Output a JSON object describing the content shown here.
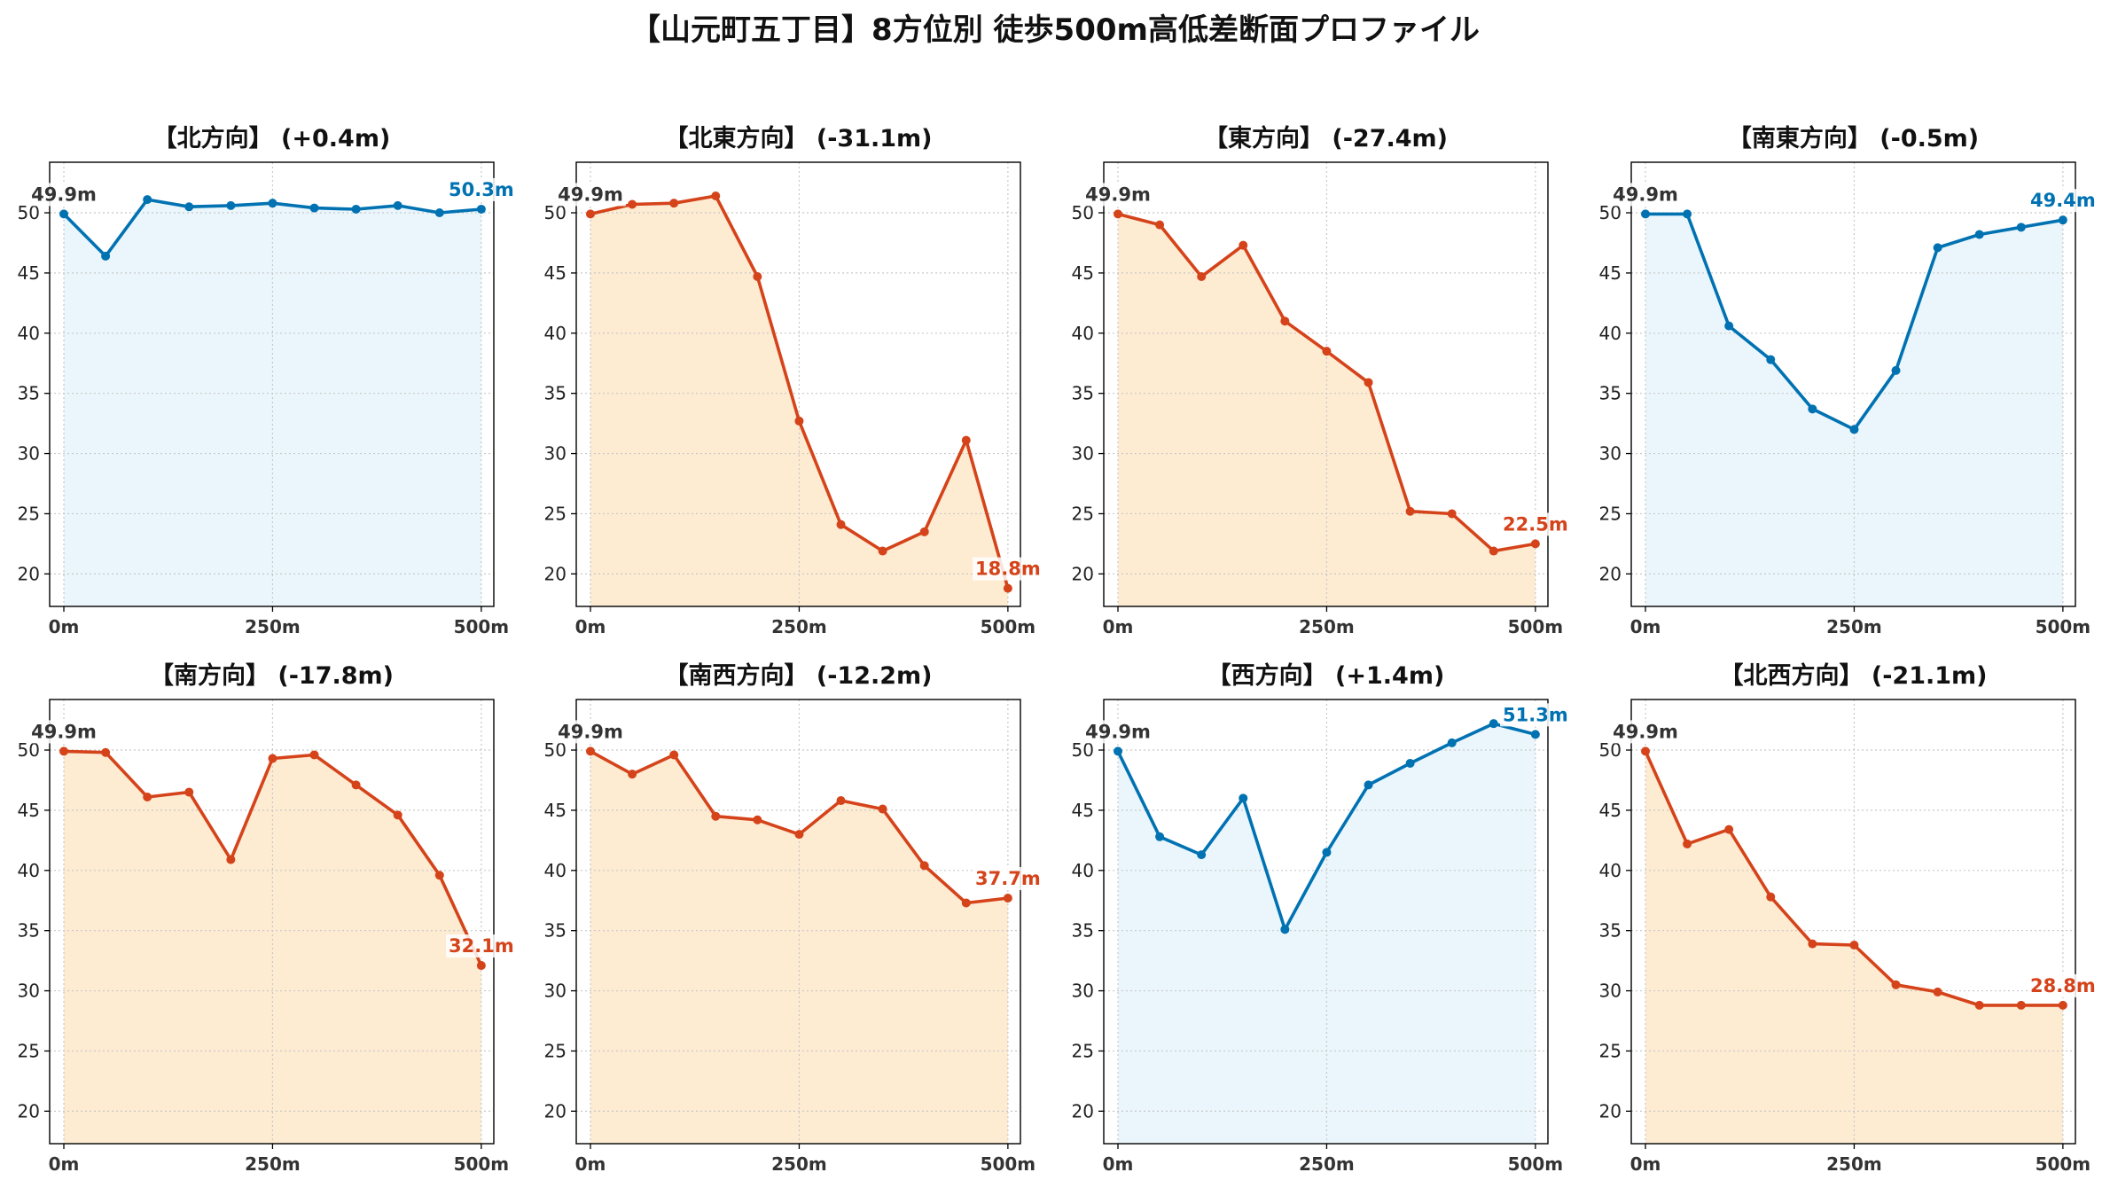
{
  "title": "【山元町五丁目】8方位別 徒歩500m高低差断面プロファイル",
  "colors": {
    "up": "#0072B2",
    "down": "#D5431A",
    "fill_up": "#EAF6FC",
    "fill_down": "#FDEBD2",
    "start_label": "#333333"
  },
  "chart_data": [
    {
      "type": "line",
      "title": "【北方向】 (+0.4m)",
      "x": [
        0,
        50,
        100,
        150,
        200,
        250,
        300,
        350,
        400,
        450,
        500
      ],
      "values": [
        49.9,
        46.4,
        51.1,
        50.5,
        50.6,
        50.8,
        50.4,
        50.3,
        50.6,
        50.0,
        50.3
      ],
      "xticks": [
        0,
        250,
        500
      ],
      "xtick_labels": [
        "0m",
        "250m",
        "500m"
      ],
      "yticks": [
        20,
        25,
        30,
        35,
        40,
        45,
        50
      ],
      "ytick_labels": [
        "20",
        "25",
        "30",
        "35",
        "40",
        "45",
        "50"
      ],
      "xlim": [
        -17,
        515
      ],
      "ylim": [
        17.3,
        54.2
      ],
      "grid": true,
      "color": "#0072B2",
      "fill": "#EAF6FC",
      "start_label": "49.9m",
      "end_label": "50.3m"
    },
    {
      "type": "line",
      "title": "【北東方向】 (-31.1m)",
      "x": [
        0,
        50,
        100,
        150,
        200,
        250,
        300,
        350,
        400,
        450,
        500
      ],
      "values": [
        49.9,
        50.7,
        50.8,
        51.4,
        44.7,
        32.7,
        24.1,
        21.9,
        23.5,
        31.1,
        18.8
      ],
      "xticks": [
        0,
        250,
        500
      ],
      "xtick_labels": [
        "0m",
        "250m",
        "500m"
      ],
      "yticks": [
        20,
        25,
        30,
        35,
        40,
        45,
        50
      ],
      "ytick_labels": [
        "20",
        "25",
        "30",
        "35",
        "40",
        "45",
        "50"
      ],
      "xlim": [
        -17,
        515
      ],
      "ylim": [
        17.3,
        54.2
      ],
      "grid": true,
      "color": "#D5431A",
      "fill": "#FDEBD2",
      "start_label": "49.9m",
      "end_label": "18.8m"
    },
    {
      "type": "line",
      "title": "【東方向】 (-27.4m)",
      "x": [
        0,
        50,
        100,
        150,
        200,
        250,
        300,
        350,
        400,
        450,
        500
      ],
      "values": [
        49.9,
        49.0,
        44.7,
        47.3,
        41.0,
        38.5,
        35.9,
        25.2,
        25.0,
        21.9,
        22.5
      ],
      "xticks": [
        0,
        250,
        500
      ],
      "xtick_labels": [
        "0m",
        "250m",
        "500m"
      ],
      "yticks": [
        20,
        25,
        30,
        35,
        40,
        45,
        50
      ],
      "ytick_labels": [
        "20",
        "25",
        "30",
        "35",
        "40",
        "45",
        "50"
      ],
      "xlim": [
        -17,
        515
      ],
      "ylim": [
        17.3,
        54.2
      ],
      "grid": true,
      "color": "#D5431A",
      "fill": "#FDEBD2",
      "start_label": "49.9m",
      "end_label": "22.5m"
    },
    {
      "type": "line",
      "title": "【南東方向】 (-0.5m)",
      "x": [
        0,
        50,
        100,
        150,
        200,
        250,
        300,
        350,
        400,
        450,
        500
      ],
      "values": [
        49.9,
        49.9,
        40.6,
        37.8,
        33.7,
        32.0,
        36.9,
        47.1,
        48.2,
        48.8,
        49.4
      ],
      "xticks": [
        0,
        250,
        500
      ],
      "xtick_labels": [
        "0m",
        "250m",
        "500m"
      ],
      "yticks": [
        20,
        25,
        30,
        35,
        40,
        45,
        50
      ],
      "ytick_labels": [
        "20",
        "25",
        "30",
        "35",
        "40",
        "45",
        "50"
      ],
      "xlim": [
        -17,
        515
      ],
      "ylim": [
        17.3,
        54.2
      ],
      "grid": true,
      "color": "#0072B2",
      "fill": "#EAF6FC",
      "start_label": "49.9m",
      "end_label": "49.4m"
    },
    {
      "type": "line",
      "title": "【南方向】 (-17.8m)",
      "x": [
        0,
        50,
        100,
        150,
        200,
        250,
        300,
        350,
        400,
        450,
        500
      ],
      "values": [
        49.9,
        49.8,
        46.1,
        46.5,
        40.9,
        49.3,
        49.6,
        47.1,
        44.6,
        39.6,
        32.1
      ],
      "xticks": [
        0,
        250,
        500
      ],
      "xtick_labels": [
        "0m",
        "250m",
        "500m"
      ],
      "yticks": [
        20,
        25,
        30,
        35,
        40,
        45,
        50
      ],
      "ytick_labels": [
        "20",
        "25",
        "30",
        "35",
        "40",
        "45",
        "50"
      ],
      "xlim": [
        -17,
        515
      ],
      "ylim": [
        17.3,
        54.2
      ],
      "grid": true,
      "color": "#D5431A",
      "fill": "#FDEBD2",
      "start_label": "49.9m",
      "end_label": "32.1m"
    },
    {
      "type": "line",
      "title": "【南西方向】 (-12.2m)",
      "x": [
        0,
        50,
        100,
        150,
        200,
        250,
        300,
        350,
        400,
        450,
        500
      ],
      "values": [
        49.9,
        48.0,
        49.6,
        44.5,
        44.2,
        43.0,
        45.8,
        45.1,
        40.4,
        37.3,
        37.7
      ],
      "xticks": [
        0,
        250,
        500
      ],
      "xtick_labels": [
        "0m",
        "250m",
        "500m"
      ],
      "yticks": [
        20,
        25,
        30,
        35,
        40,
        45,
        50
      ],
      "ytick_labels": [
        "20",
        "25",
        "30",
        "35",
        "40",
        "45",
        "50"
      ],
      "xlim": [
        -17,
        515
      ],
      "ylim": [
        17.3,
        54.2
      ],
      "grid": true,
      "color": "#D5431A",
      "fill": "#FDEBD2",
      "start_label": "49.9m",
      "end_label": "37.7m"
    },
    {
      "type": "line",
      "title": "【西方向】 (+1.4m)",
      "x": [
        0,
        50,
        100,
        150,
        200,
        250,
        300,
        350,
        400,
        450,
        500
      ],
      "values": [
        49.9,
        42.8,
        41.3,
        46.0,
        35.1,
        41.5,
        47.1,
        48.9,
        50.6,
        52.2,
        51.3
      ],
      "xticks": [
        0,
        250,
        500
      ],
      "xtick_labels": [
        "0m",
        "250m",
        "500m"
      ],
      "yticks": [
        20,
        25,
        30,
        35,
        40,
        45,
        50
      ],
      "ytick_labels": [
        "20",
        "25",
        "30",
        "35",
        "40",
        "45",
        "50"
      ],
      "xlim": [
        -17,
        515
      ],
      "ylim": [
        17.3,
        54.2
      ],
      "grid": true,
      "color": "#0072B2",
      "fill": "#EAF6FC",
      "start_label": "49.9m",
      "end_label": "51.3m"
    },
    {
      "type": "line",
      "title": "【北西方向】 (-21.1m)",
      "x": [
        0,
        50,
        100,
        150,
        200,
        250,
        300,
        350,
        400,
        450,
        500
      ],
      "values": [
        49.9,
        42.2,
        43.4,
        37.8,
        33.9,
        33.8,
        30.5,
        29.9,
        28.8,
        28.8,
        28.8
      ],
      "xticks": [
        0,
        250,
        500
      ],
      "xtick_labels": [
        "0m",
        "250m",
        "500m"
      ],
      "yticks": [
        20,
        25,
        30,
        35,
        40,
        45,
        50
      ],
      "ytick_labels": [
        "20",
        "25",
        "30",
        "35",
        "40",
        "45",
        "50"
      ],
      "xlim": [
        -17,
        515
      ],
      "ylim": [
        17.3,
        54.2
      ],
      "grid": true,
      "color": "#D5431A",
      "fill": "#FDEBD2",
      "start_label": "49.9m",
      "end_label": "28.8m"
    }
  ]
}
